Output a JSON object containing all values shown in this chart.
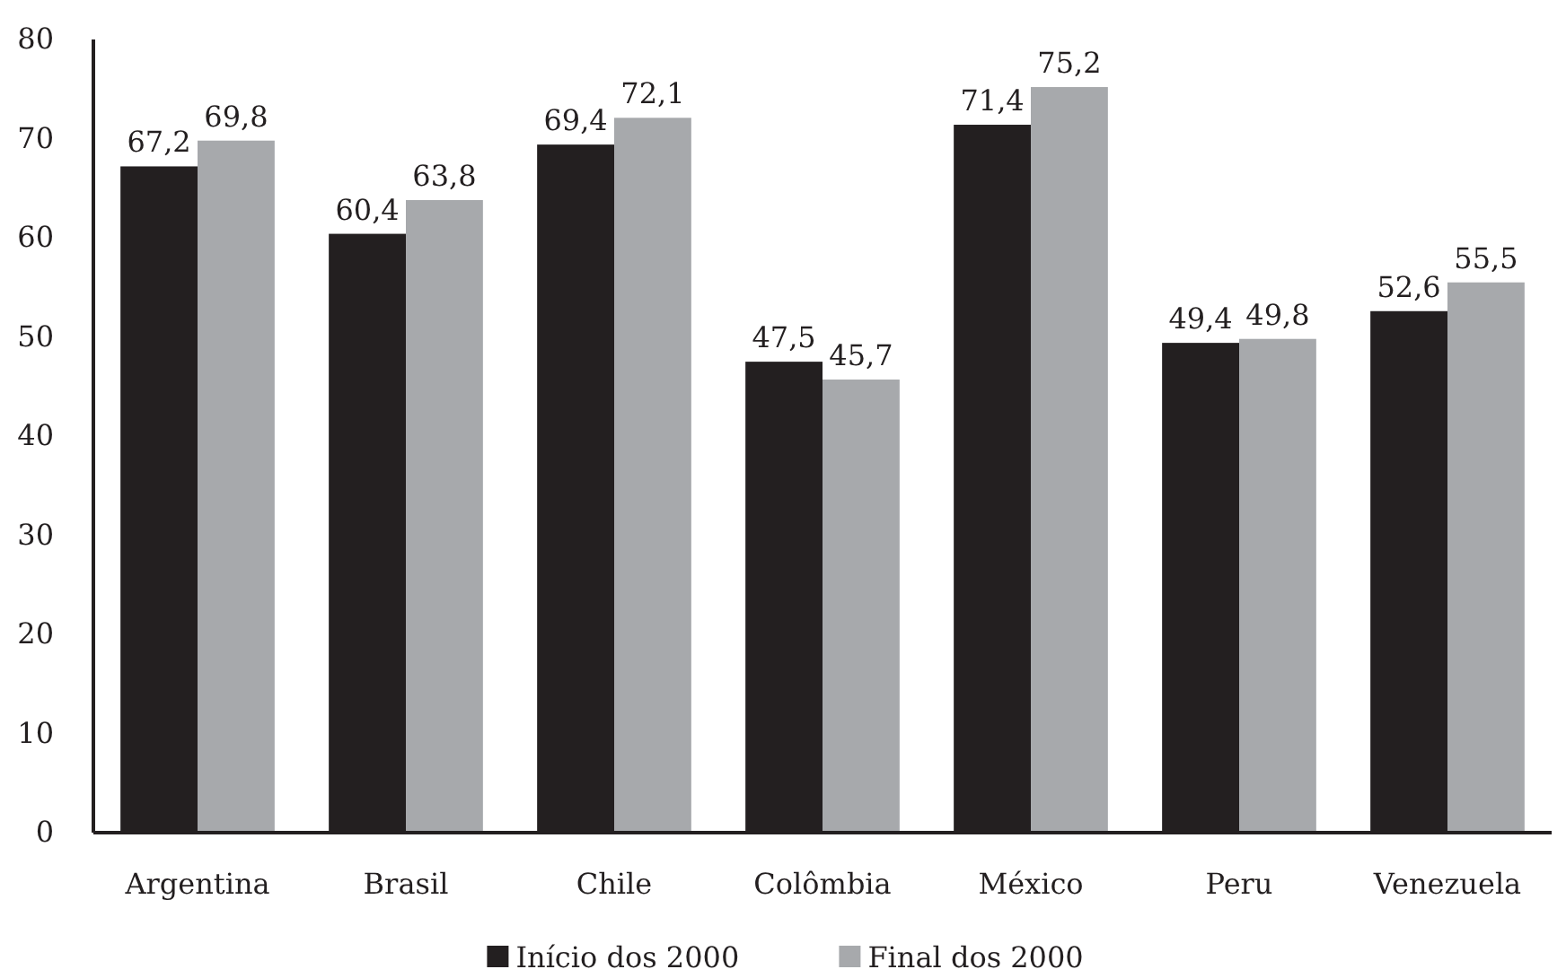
{
  "chart_data": {
    "type": "bar",
    "categories": [
      "Argentina",
      "Brasil",
      "Chile",
      "Colômbia",
      "México",
      "Peru",
      "Venezuela"
    ],
    "series": [
      {
        "name": "Início dos 2000",
        "color": "#231f20",
        "values": [
          67.2,
          60.4,
          69.4,
          47.5,
          71.4,
          49.4,
          52.6
        ],
        "value_labels": [
          "67,2",
          "60,4",
          "69,4",
          "47,5",
          "71,4",
          "49,4",
          "52,6"
        ]
      },
      {
        "name": "Final dos 2000",
        "color": "#a7a9ac",
        "values": [
          69.8,
          63.8,
          72.1,
          45.7,
          75.2,
          49.8,
          55.5
        ],
        "value_labels": [
          "69,8",
          "63,8",
          "72,1",
          "45,7",
          "75,2",
          "49,8",
          "55,5"
        ]
      }
    ],
    "ylim": [
      0,
      80
    ],
    "yticks": [
      0,
      10,
      20,
      30,
      40,
      50,
      60,
      70,
      80
    ],
    "grid": false,
    "legend": "bottom"
  }
}
